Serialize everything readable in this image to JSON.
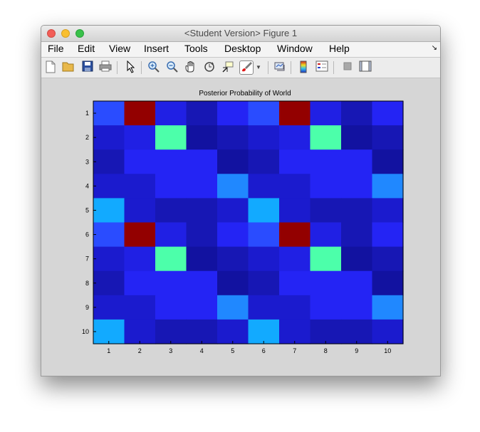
{
  "window": {
    "title": "<Student Version> Figure 1"
  },
  "menu": [
    "File",
    "Edit",
    "View",
    "Insert",
    "Tools",
    "Desktop",
    "Window",
    "Help"
  ],
  "toolbar": {
    "icons": [
      "new-figure-icon",
      "open-file-icon",
      "save-icon",
      "print-icon",
      "edit-plot-arrow-icon",
      "zoom-in-icon",
      "zoom-out-icon",
      "pan-hand-icon",
      "rotate-3d-icon",
      "data-cursor-icon",
      "brush-icon",
      "brush-dropdown-icon",
      "link-plot-icon",
      "colorbar-icon",
      "legend-icon",
      "hide-plot-tools-icon",
      "show-plot-tools-icon"
    ]
  },
  "colors": {
    "dark_red": "#930000",
    "mint": "#4cffaa",
    "sky": "#12aaff",
    "light_blue": "#2088ff",
    "blue_5": "#2a4cff",
    "blue_4": "#2424f4",
    "blue_3": "#2020e4",
    "blue_2": "#1b1bce",
    "blue_1": "#1717b4",
    "blue_0": "#1212a0"
  },
  "chart_data": {
    "type": "heatmap",
    "title": "Posterior Probability of World",
    "x_ticks": [
      "1",
      "2",
      "3",
      "4",
      "5",
      "6",
      "7",
      "8",
      "9",
      "10"
    ],
    "y_ticks": [
      "1",
      "2",
      "3",
      "4",
      "5",
      "6",
      "7",
      "8",
      "9",
      "10"
    ],
    "colormap": "jet",
    "grid": false,
    "legend": "none",
    "values": [
      [
        3.6,
        10.0,
        1.8,
        0.9,
        2.6,
        3.6,
        10.0,
        1.8,
        0.9,
        2.6
      ],
      [
        1.2,
        1.8,
        6.8,
        0.6,
        1.0,
        1.2,
        1.8,
        6.8,
        0.6,
        1.0
      ],
      [
        0.9,
        2.6,
        2.6,
        2.9,
        0.8,
        0.9,
        2.6,
        2.6,
        2.9,
        0.8
      ],
      [
        1.4,
        1.4,
        2.5,
        2.8,
        4.6,
        1.4,
        1.4,
        2.5,
        2.8,
        4.6
      ],
      [
        5.2,
        1.3,
        1.1,
        1.1,
        1.3,
        5.2,
        1.3,
        1.1,
        1.1,
        1.3
      ],
      [
        3.6,
        10.0,
        1.8,
        0.9,
        2.6,
        3.6,
        10.0,
        1.8,
        0.9,
        2.6
      ],
      [
        1.2,
        1.8,
        6.8,
        0.6,
        1.0,
        1.2,
        1.8,
        6.8,
        0.6,
        1.0
      ],
      [
        0.9,
        2.6,
        2.6,
        2.9,
        0.8,
        0.9,
        2.6,
        2.6,
        2.9,
        0.8
      ],
      [
        1.4,
        1.4,
        2.5,
        2.8,
        4.6,
        1.4,
        1.4,
        2.5,
        2.8,
        4.6
      ],
      [
        5.2,
        1.3,
        1.1,
        1.1,
        1.3,
        5.2,
        1.3,
        1.1,
        1.1,
        1.3
      ]
    ],
    "clim": [
      0,
      10
    ]
  }
}
